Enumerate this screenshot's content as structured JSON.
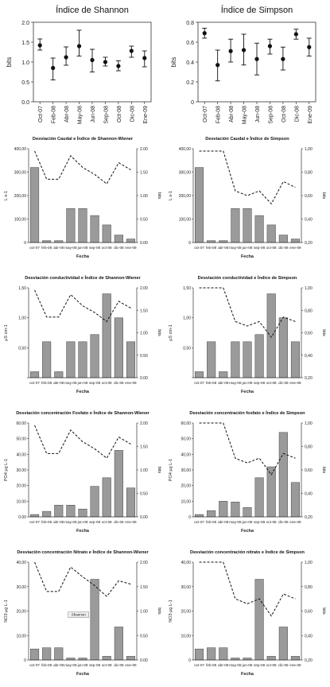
{
  "chart_data": [
    {
      "type": "scatter",
      "title": "Índice de Shannon",
      "ylabel": "bits",
      "xlabel": "",
      "categories": [
        "Oct-07",
        "Feb-08",
        "Abr-08",
        "May-08",
        "Jun-08",
        "Sep-08",
        "Oct-08",
        "Dic-08",
        "Ene-09"
      ],
      "values": [
        1.42,
        0.85,
        1.12,
        1.4,
        1.05,
        1.0,
        0.9,
        1.28,
        1.1
      ],
      "err_low": [
        1.3,
        0.55,
        0.92,
        1.15,
        0.75,
        0.9,
        0.78,
        1.12,
        0.88
      ],
      "err_high": [
        1.58,
        1.1,
        1.38,
        1.8,
        1.32,
        1.12,
        1.03,
        1.4,
        1.28
      ],
      "ylim": [
        0.0,
        2.0
      ],
      "yticks": [
        "0.0",
        "0.5",
        "1.0",
        "1.5",
        "2.0"
      ],
      "style": "errorbar"
    },
    {
      "type": "scatter",
      "title": "Índice de Simpson",
      "ylabel": "bits",
      "xlabel": "",
      "categories": [
        "Oct-07",
        "Feb-08",
        "Abr-08",
        "May-08",
        "Jun-08",
        "Sep-08",
        "Oct-08",
        "Dic-08",
        "Ene-09"
      ],
      "values": [
        0.69,
        0.37,
        0.51,
        0.52,
        0.43,
        0.56,
        0.43,
        0.68,
        0.55
      ],
      "err_low": [
        0.64,
        0.21,
        0.4,
        0.37,
        0.27,
        0.48,
        0.32,
        0.63,
        0.46
      ],
      "err_high": [
        0.74,
        0.52,
        0.63,
        0.68,
        0.59,
        0.63,
        0.55,
        0.73,
        0.64
      ],
      "ylim": [
        0.0,
        0.8
      ],
      "yticks": [
        "0",
        "0.2",
        "0.4",
        "0.6",
        "0.8"
      ],
      "style": "errorbar"
    },
    {
      "type": "bar",
      "title": "Desviación Caudal e Índice de Shannon-Wiener",
      "xlabel": "Fecha",
      "ylabel": "L s-1",
      "y2label": "bits",
      "categories": [
        "oct-07",
        "feb-08",
        "abr-08",
        "may-08",
        "jun-08",
        "sep-08",
        "oct-08",
        "dic-08",
        "ene-09"
      ],
      "values": [
        320,
        8,
        8,
        145,
        145,
        115,
        75,
        32,
        15
      ],
      "line": [
        1.95,
        1.35,
        1.35,
        1.85,
        1.6,
        1.45,
        1.25,
        1.7,
        1.55
      ],
      "ylim": [
        0,
        400
      ],
      "y2lim": [
        0,
        2.0
      ],
      "yticks": [
        "0",
        "100,00",
        "200,00",
        "300,00",
        "400,00"
      ],
      "y2ticks": [
        "0.00",
        "0.50",
        "1.00",
        "1.50",
        "2.00"
      ]
    },
    {
      "type": "bar",
      "title": "Desviación Caudal e Índice de Simpson",
      "xlabel": "Fecha",
      "ylabel": "L s-1",
      "y2label": "bits",
      "categories": [
        "oct-07",
        "feb-08",
        "abr-08",
        "may-08",
        "jun-08",
        "sep-08",
        "oct-08",
        "dic-08",
        "ene-09"
      ],
      "values": [
        320,
        8,
        8,
        145,
        145,
        115,
        75,
        32,
        15
      ],
      "line": [
        0.98,
        0.98,
        0.98,
        0.64,
        0.6,
        0.64,
        0.53,
        0.72,
        0.67
      ],
      "ylim": [
        0,
        400
      ],
      "y2lim": [
        0.2,
        1.0
      ],
      "yticks": [
        "0",
        "100,00",
        "200,00",
        "300,00",
        "400,00"
      ],
      "y2ticks": [
        "0,20",
        "0,40",
        "0,60",
        "0,80",
        "1,00"
      ]
    },
    {
      "type": "bar",
      "title": "Desviación conductividad e Índice de Shannon-Wiener",
      "xlabel": "Fecha",
      "ylabel": "µS cm-1",
      "y2label": "bits",
      "categories": [
        "oct-07",
        "feb-08",
        "abr-08",
        "may-08",
        "jun-08",
        "sep-08",
        "oct-08",
        "dic-08",
        "ene-09"
      ],
      "values": [
        0.1,
        0.6,
        0.1,
        0.6,
        0.6,
        0.72,
        1.4,
        1.0,
        0.6
      ],
      "line": [
        1.95,
        1.35,
        1.35,
        1.85,
        1.6,
        1.45,
        1.25,
        1.7,
        1.55
      ],
      "ylim": [
        0,
        1.5
      ],
      "y2lim": [
        0,
        2.0
      ],
      "yticks": [
        "",
        "0,50",
        "1,00",
        "1,50"
      ],
      "y2ticks": [
        "0.00",
        "0.50",
        "1.00",
        "1.50",
        "2.00"
      ]
    },
    {
      "type": "bar",
      "title": "Desviación conductividad e Índice de Simpson",
      "xlabel": "Fecha",
      "ylabel": "µS cm-1",
      "y2label": "bits",
      "categories": [
        "oct-07",
        "feb-08",
        "abr-08",
        "may-08",
        "jun-08",
        "sep-08",
        "oct-08",
        "dic-08",
        "ene-09"
      ],
      "values": [
        0.1,
        0.6,
        0.1,
        0.6,
        0.6,
        0.72,
        1.4,
        1.0,
        0.6
      ],
      "line": [
        1.0,
        1.0,
        1.0,
        0.7,
        0.66,
        0.7,
        0.56,
        0.74,
        0.7
      ],
      "ylim": [
        0,
        1.5
      ],
      "y2lim": [
        0.2,
        1.0
      ],
      "yticks": [
        "",
        "0,50",
        "1,00",
        "1,50"
      ],
      "y2ticks": [
        "0,20",
        "0,40",
        "0,60",
        "0,80",
        "1,00"
      ]
    },
    {
      "type": "bar",
      "title": "Desviación concentración Fosfato e Índice de Shannon-Wiener",
      "xlabel": "Fecha",
      "ylabel": "PO4 µg L-1",
      "y2label": "bits",
      "categories": [
        "oct-07",
        "feb-08",
        "abr-08",
        "may-08",
        "jun-08",
        "sep-08",
        "oct-08",
        "dic-08",
        "ene-09"
      ],
      "values": [
        1.5,
        3.5,
        7.5,
        7.5,
        5,
        19.5,
        25,
        42.5,
        18.5
      ],
      "line": [
        1.95,
        1.35,
        1.35,
        1.85,
        1.6,
        1.45,
        1.25,
        1.7,
        1.55
      ],
      "ylim": [
        0,
        60
      ],
      "y2lim": [
        0,
        2.0
      ],
      "yticks": [
        "0.00",
        "10.00",
        "20.00",
        "30.00",
        "40.00",
        "50.00",
        "60.00"
      ],
      "y2ticks": [
        "0.00",
        "0.50",
        "1.00",
        "1.50",
        "2.00"
      ]
    },
    {
      "type": "bar",
      "title": "Desviación concentración fosfato e Índice de Simpson",
      "xlabel": "Fecha",
      "ylabel": "PO4 µg L-1",
      "y2label": "bits",
      "categories": [
        "oct-07",
        "feb-08",
        "abr-08",
        "may-08",
        "jun-08",
        "sep-08",
        "oct-08",
        "dic-08",
        "ene-09"
      ],
      "values": [
        1.5,
        4,
        10,
        9.5,
        6,
        25,
        32,
        54,
        22
      ],
      "line": [
        1.0,
        1.0,
        1.0,
        0.7,
        0.66,
        0.7,
        0.56,
        0.74,
        0.7
      ],
      "ylim": [
        0,
        60
      ],
      "y2lim": [
        0.2,
        1.0
      ],
      "yticks": [
        "0",
        "10,00",
        "20,00",
        "30,00",
        "40,00",
        "50,00",
        "60,00"
      ],
      "y2ticks": [
        "0,20",
        "0,40",
        "0,60",
        "0,80",
        "1,00"
      ]
    },
    {
      "type": "bar",
      "title": "Desviación concentración Nitrato e Índice de Shannon-Wiener",
      "xlabel": "Fecha",
      "ylabel": "NO3 µg L-1",
      "y2label": "bits",
      "categories": [
        "oct-07",
        "feb-08",
        "abr-08",
        "may-08",
        "jun-08",
        "sep-08",
        "oct-08",
        "dic-08",
        "ene-09"
      ],
      "values": [
        4.5,
        5,
        5,
        0.8,
        0.8,
        33,
        1.5,
        13.5,
        1.5
      ],
      "line": [
        2.0,
        1.4,
        1.4,
        1.9,
        1.7,
        1.52,
        1.3,
        1.62,
        1.55
      ],
      "ylim": [
        0,
        40
      ],
      "y2lim": [
        0,
        2.0
      ],
      "yticks": [
        "0",
        "10,00",
        "20,00",
        "30,00",
        "40,00"
      ],
      "y2ticks": [
        "0.00",
        "0.50",
        "1.00",
        "1.50",
        "2.00"
      ],
      "legend_label": "Shannon"
    },
    {
      "type": "bar",
      "title": "Desviación concentración nitrato e Índice de Simpson",
      "xlabel": "Fecha",
      "ylabel": "NO3 µg L-1",
      "y2label": "bits",
      "categories": [
        "oct-07",
        "feb-08",
        "abr-08",
        "may-08",
        "jun-08",
        "sep-08",
        "oct-08",
        "dic-08",
        "ene-09"
      ],
      "values": [
        4.5,
        5,
        5,
        0.8,
        0.8,
        33,
        1.5,
        13.5,
        1.5
      ],
      "line": [
        1.0,
        1.0,
        1.0,
        0.7,
        0.66,
        0.7,
        0.56,
        0.74,
        0.7
      ],
      "ylim": [
        0,
        40
      ],
      "y2lim": [
        0.2,
        1.0
      ],
      "yticks": [
        "0",
        "10,00",
        "20,00",
        "30,00",
        "40,00"
      ],
      "y2ticks": [
        "0,20",
        "0,40",
        "0,60",
        "0,80",
        "1,00"
      ]
    }
  ]
}
